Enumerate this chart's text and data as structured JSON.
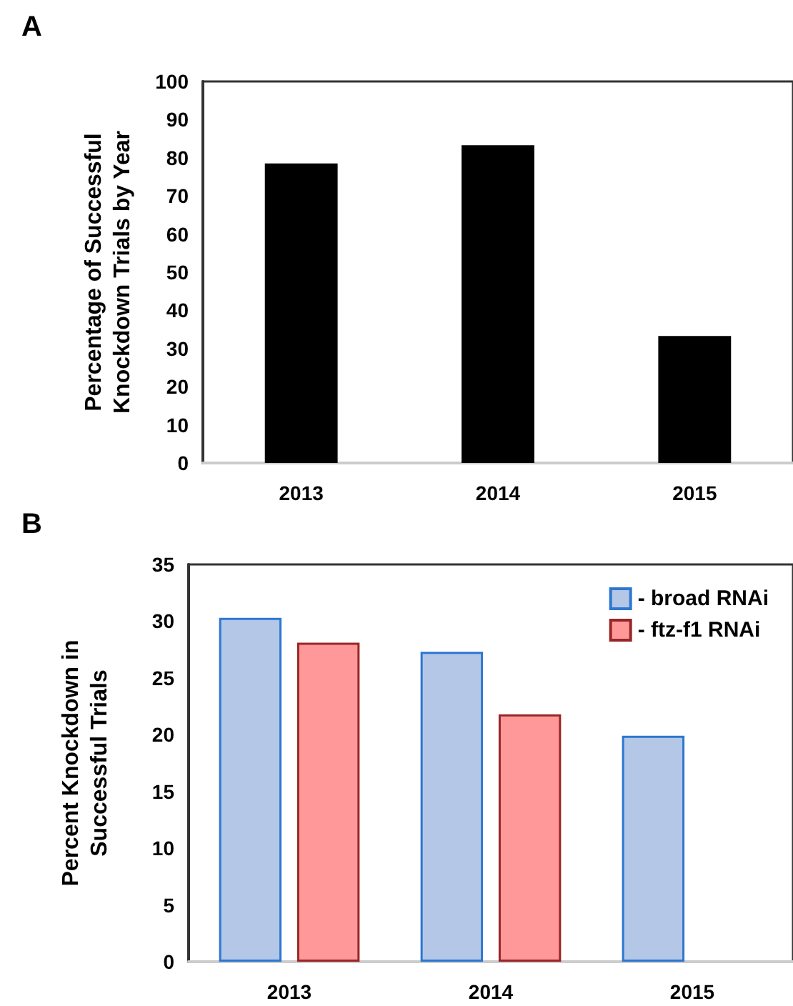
{
  "chart_data": [
    {
      "type": "bar",
      "title": "A",
      "ylabel": "Percentage of Successful Knockdown Trials by Year",
      "categories": [
        "2013",
        "2014",
        "2015"
      ],
      "series": [
        {
          "color": "#000000",
          "values": [
            78.5,
            83.3,
            33.3
          ]
        }
      ],
      "ylim": [
        0,
        100
      ],
      "yticks": [
        0,
        10,
        20,
        30,
        40,
        50,
        60,
        70,
        80,
        90,
        100
      ],
      "grid": false,
      "legend": false
    },
    {
      "type": "bar",
      "title": "B",
      "ylabel": "Percent Knockdown in Successful Trials",
      "categories": [
        "2013",
        "2014",
        "2015"
      ],
      "series": [
        {
          "name": "- broad RNAi",
          "color": "#b4c7e7",
          "values": [
            30.3,
            27.3,
            19.9
          ]
        },
        {
          "name": "- ftz-f1 RNAi",
          "color": "#ff9999",
          "values": [
            28.1,
            21.8,
            null
          ]
        }
      ],
      "ylim": [
        0,
        35
      ],
      "yticks": [
        0,
        5,
        10,
        15,
        20,
        25,
        30,
        35
      ],
      "grid": false,
      "legend": "top right"
    }
  ]
}
